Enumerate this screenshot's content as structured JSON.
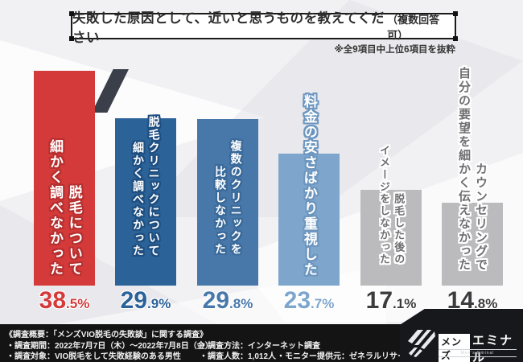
{
  "title": {
    "main": "失敗した原因として、近いと思うものを教えてください",
    "paren": "（複数回答可）"
  },
  "note": "※全9項目中上位6項目を抜粋",
  "sample_note": "(n=1,012人)",
  "chart_data": {
    "type": "bar",
    "title": "失敗した原因として、近いと思うものを教えてください（複数回答可）",
    "subtitle": "※全9項目中上位6項目を抜粋",
    "unit": "%",
    "ylim": [
      0,
      40
    ],
    "grid": false,
    "legend_position": "none",
    "sample_size": "n=1,012人",
    "categories": [
      "脱毛について細かく調べなかった",
      "脱毛クリニックについて細かく調べなかった",
      "複数のクリニックを比較しなかった",
      "料金の安さばかり重視した",
      "脱毛した後のイメージをしなかった",
      "カウンセリングで自分の要望を細かく伝えなかった"
    ],
    "values": [
      38.5,
      29.9,
      29.8,
      23.7,
      17.1,
      14.8
    ],
    "bars": [
      {
        "label": "脱毛について\n細かく調べなかった",
        "value": 38.5,
        "value_int": "38",
        "value_dec": ".5%",
        "color": "#d43a3a",
        "label_color": "#ffffff",
        "outline": "#b73030",
        "value_color": "#d43a3a"
      },
      {
        "label": "脱毛クリニックについて\n細かく調べなかった",
        "value": 29.9,
        "value_int": "29",
        "value_dec": ".9%",
        "color": "#2b6298",
        "label_color": "#ffffff",
        "outline": "#1f4f80",
        "value_color": "#2b6298"
      },
      {
        "label": "複数のクリニックを\n比較しなかった",
        "value": 29.8,
        "value_int": "29",
        "value_dec": ".8%",
        "color": "#4878aa",
        "label_color": "#ffffff",
        "outline": "#3a6a9a",
        "value_color": "#4878aa"
      },
      {
        "label": "料金の安さばかり重視した",
        "value": 23.7,
        "value_int": "23",
        "value_dec": ".7%",
        "color": "#7ea6cd",
        "label_color": "#ffffff",
        "outline": "#6d96bf",
        "value_color": "#7ea6cd"
      },
      {
        "label": "脱毛した後の\nイメージをしなかった",
        "value": 17.1,
        "value_int": "17",
        "value_dec": ".1%",
        "color": "#bbbbbd",
        "label_color": "#6f6f71",
        "outline": "#ffffff",
        "value_color": "#3c3c3e"
      },
      {
        "label": "カウンセリングで\n自分の要望を細かく伝えなかった",
        "value": 14.8,
        "value_int": "14",
        "value_dec": ".8%",
        "color": "#bbbbbd",
        "label_color": "#6f6f71",
        "outline": "#ffffff",
        "value_color": "#3c3c3e"
      }
    ]
  },
  "footer": {
    "overview": "《調査概要：「メンズVIO脱毛の失敗談」に関する調査》",
    "period": "・調査期間：2022年7月7日（木）～2022年7月8日（金）",
    "method": "・調査方法：インターネット調査",
    "target": "・調査対象：VIO脱毛をして失敗経験のある男性",
    "count": "・調査人数：1,012人",
    "monitor": "・モニター提供元：ゼネラルリサーチ"
  },
  "logo": {
    "brand_box": "メンズ",
    "brand_rest": "エミナル",
    "subtext": "Men's Eminal"
  },
  "colors": {
    "accent_red": "#d43a3a",
    "accent_blue": "#2b6298",
    "footer_bg": "#141414",
    "page_bg": "#f1f1f4"
  }
}
